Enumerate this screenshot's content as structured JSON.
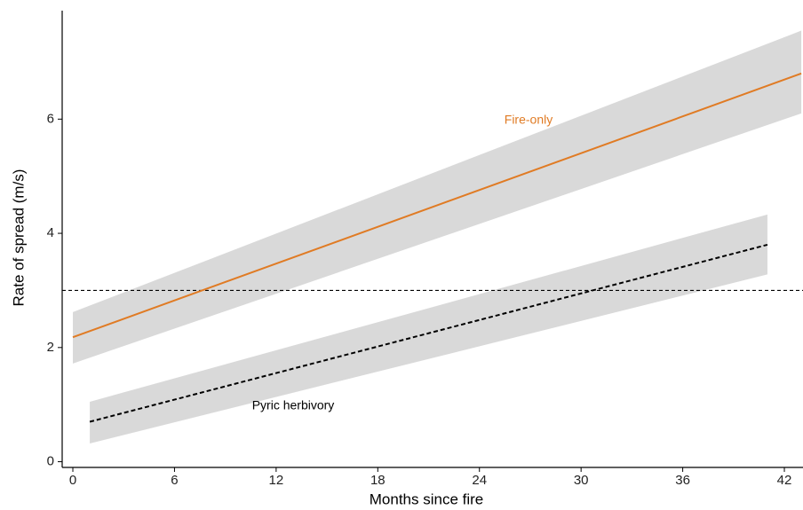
{
  "chart_data": {
    "type": "line",
    "xlabel": "Months since fire",
    "ylabel": "Rate of spread (m/s)",
    "xlim": [
      -0.63,
      43.1
    ],
    "ylim": [
      -0.1,
      7.9
    ],
    "xticks": [
      0,
      6,
      12,
      18,
      24,
      30,
      36,
      42
    ],
    "yticks": [
      0,
      2,
      4,
      6
    ],
    "grid": false,
    "hline": 3,
    "band_color": "#d9d9d9",
    "series": [
      {
        "name": "Fire-only",
        "color": "#e07b24",
        "dash": false,
        "x": [
          0,
          43
        ],
        "values": [
          2.18,
          6.8
        ],
        "lower": [
          1.72,
          6.1
        ],
        "upper": [
          2.62,
          7.55
        ]
      },
      {
        "name": "Pyric herbivory",
        "color": "#000000",
        "dash": true,
        "x": [
          1,
          41
        ],
        "values": [
          0.7,
          3.8
        ],
        "lower": [
          0.32,
          3.28
        ],
        "upper": [
          1.05,
          4.33
        ]
      }
    ]
  }
}
